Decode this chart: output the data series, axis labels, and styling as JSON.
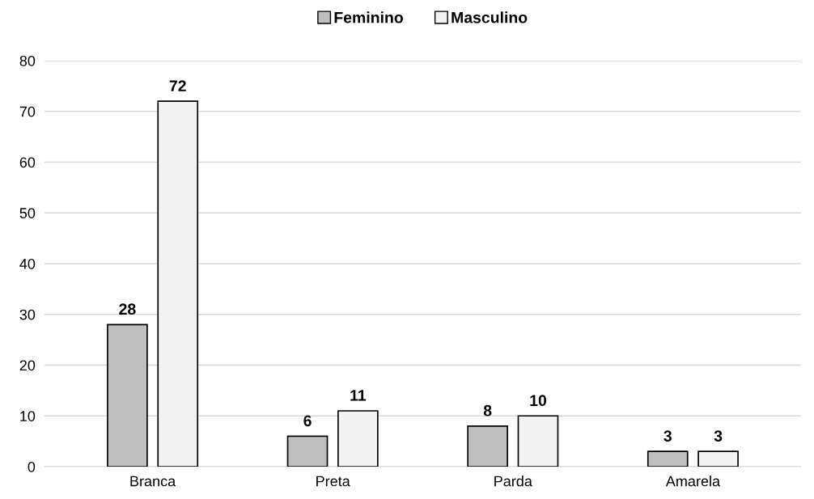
{
  "chart_data": {
    "type": "bar",
    "categories": [
      "Branca",
      "Preta",
      "Parda",
      "Amarela"
    ],
    "series": [
      {
        "name": "Feminino",
        "color": "#bfbfbf",
        "values": [
          28,
          6,
          8,
          3
        ]
      },
      {
        "name": "Masculino",
        "color": "#f2f2f2",
        "values": [
          72,
          11,
          10,
          3
        ]
      }
    ],
    "ylim": [
      0,
      80
    ],
    "yticks": [
      0,
      10,
      20,
      30,
      40,
      50,
      60,
      70,
      80
    ],
    "grid": "y",
    "legend": "top",
    "data_labels": true
  }
}
